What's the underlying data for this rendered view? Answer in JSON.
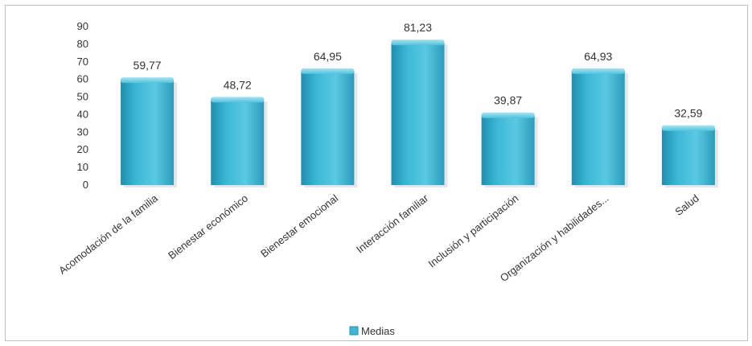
{
  "chart_data": {
    "type": "bar",
    "categories": [
      "Acomodación de la familia",
      "Bienestar económico",
      "Bienestar emocional",
      "Interacción familiar",
      "Inclusión y participación",
      "Organización y habilidades...",
      "Salud"
    ],
    "series": [
      {
        "name": "Medias",
        "values": [
          59.77,
          48.72,
          64.95,
          81.23,
          39.87,
          64.93,
          32.59
        ],
        "labels": [
          "59,77",
          "48,72",
          "64,95",
          "81,23",
          "39,87",
          "64,93",
          "32,59"
        ]
      }
    ],
    "ylim": [
      0,
      90
    ],
    "yticks": [
      "0",
      "10",
      "20",
      "30",
      "40",
      "50",
      "60",
      "70",
      "80",
      "90"
    ],
    "grid": false,
    "legend": "bottom",
    "colors": {
      "bar": "#3cb8d6",
      "bar_dark": "#1f8fae",
      "bar_light": "#7fd6ea"
    }
  }
}
